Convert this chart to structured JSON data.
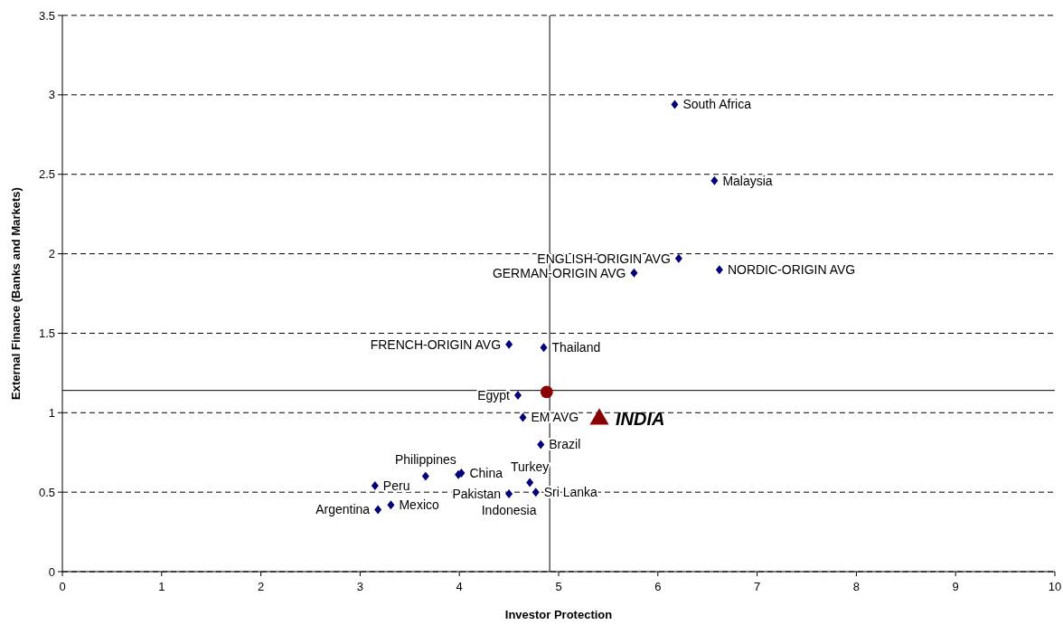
{
  "chart_data": {
    "type": "scatter",
    "xlabel": "Investor Protection",
    "ylabel": "External Finance (Banks and Markets)",
    "xlim": [
      0,
      10
    ],
    "xticks": [
      0,
      1,
      2,
      3,
      4,
      5,
      6,
      7,
      8,
      9,
      10
    ],
    "ylim": [
      0,
      3.5
    ],
    "yticks": [
      0,
      0.5,
      1,
      1.5,
      2,
      2.5,
      3,
      3.5
    ],
    "grid": "y",
    "line_style": "dashed",
    "series": [
      {
        "color": "#000080",
        "marker": "diamond",
        "x": [
          6.17,
          6.57,
          6.21,
          6.62,
          5.76,
          4.5,
          4.85,
          4.59,
          4.64,
          4.82,
          3.66,
          4.02,
          3.99,
          4.71,
          4.77,
          4.5,
          3.15,
          3.31,
          3.18
        ],
        "values": [
          2.94,
          2.46,
          1.97,
          1.9,
          1.88,
          1.43,
          1.41,
          1.11,
          0.97,
          0.8,
          0.6,
          0.62,
          0.61,
          0.56,
          0.5,
          0.49,
          0.54,
          0.42,
          0.39
        ]
      },
      {
        "color": "#8b0000",
        "marker": "circle",
        "x": [
          4.88
        ],
        "values": [
          1.13
        ]
      },
      {
        "name": "INDIA",
        "color": "#8b0000",
        "marker": "triangle",
        "x": [
          5.41
        ],
        "values": [
          0.96
        ]
      }
    ],
    "ref_lines": [
      {
        "axis": "x",
        "value": 4.91,
        "color": "#000000"
      },
      {
        "axis": "y",
        "value": 1.14,
        "color": "#000000"
      }
    ],
    "annotations": [
      {
        "text": "South Africa",
        "x": 6.17,
        "y": 2.94
      },
      {
        "text": "Malaysia",
        "x": 6.57,
        "y": 2.46
      },
      {
        "text": "ENGLISH-ORIGIN AVG",
        "x": 6.21,
        "y": 1.97
      },
      {
        "text": "NORDIC-ORIGIN AVG",
        "x": 6.62,
        "y": 1.9
      },
      {
        "text": "GERMAN-ORIGIN AVG",
        "x": 5.76,
        "y": 1.88
      },
      {
        "text": "FRENCH-ORIGIN AVG",
        "x": 4.5,
        "y": 1.43
      },
      {
        "text": "Thailand",
        "x": 4.85,
        "y": 1.41
      },
      {
        "text": "Egypt",
        "x": 4.59,
        "y": 1.11
      },
      {
        "text": "EM AVG",
        "x": 4.64,
        "y": 0.97
      },
      {
        "text": "Brazil",
        "x": 4.82,
        "y": 0.8
      },
      {
        "text": "Philippines",
        "x": 3.66,
        "y": 0.6
      },
      {
        "text": "China",
        "x": 4.02,
        "y": 0.62
      },
      {
        "text": "Turkey",
        "x": 4.71,
        "y": 0.56
      },
      {
        "text": "Sri Lanka",
        "x": 4.77,
        "y": 0.5
      },
      {
        "text": "Pakistan",
        "x": 4.5,
        "y": 0.49
      },
      {
        "text": "Peru",
        "x": 3.15,
        "y": 0.54
      },
      {
        "text": "Mexico",
        "x": 3.31,
        "y": 0.42
      },
      {
        "text": "Indonesia",
        "x": 4.5,
        "y": 0.49
      },
      {
        "text": "Argentina",
        "x": 3.18,
        "y": 0.39
      }
    ]
  }
}
